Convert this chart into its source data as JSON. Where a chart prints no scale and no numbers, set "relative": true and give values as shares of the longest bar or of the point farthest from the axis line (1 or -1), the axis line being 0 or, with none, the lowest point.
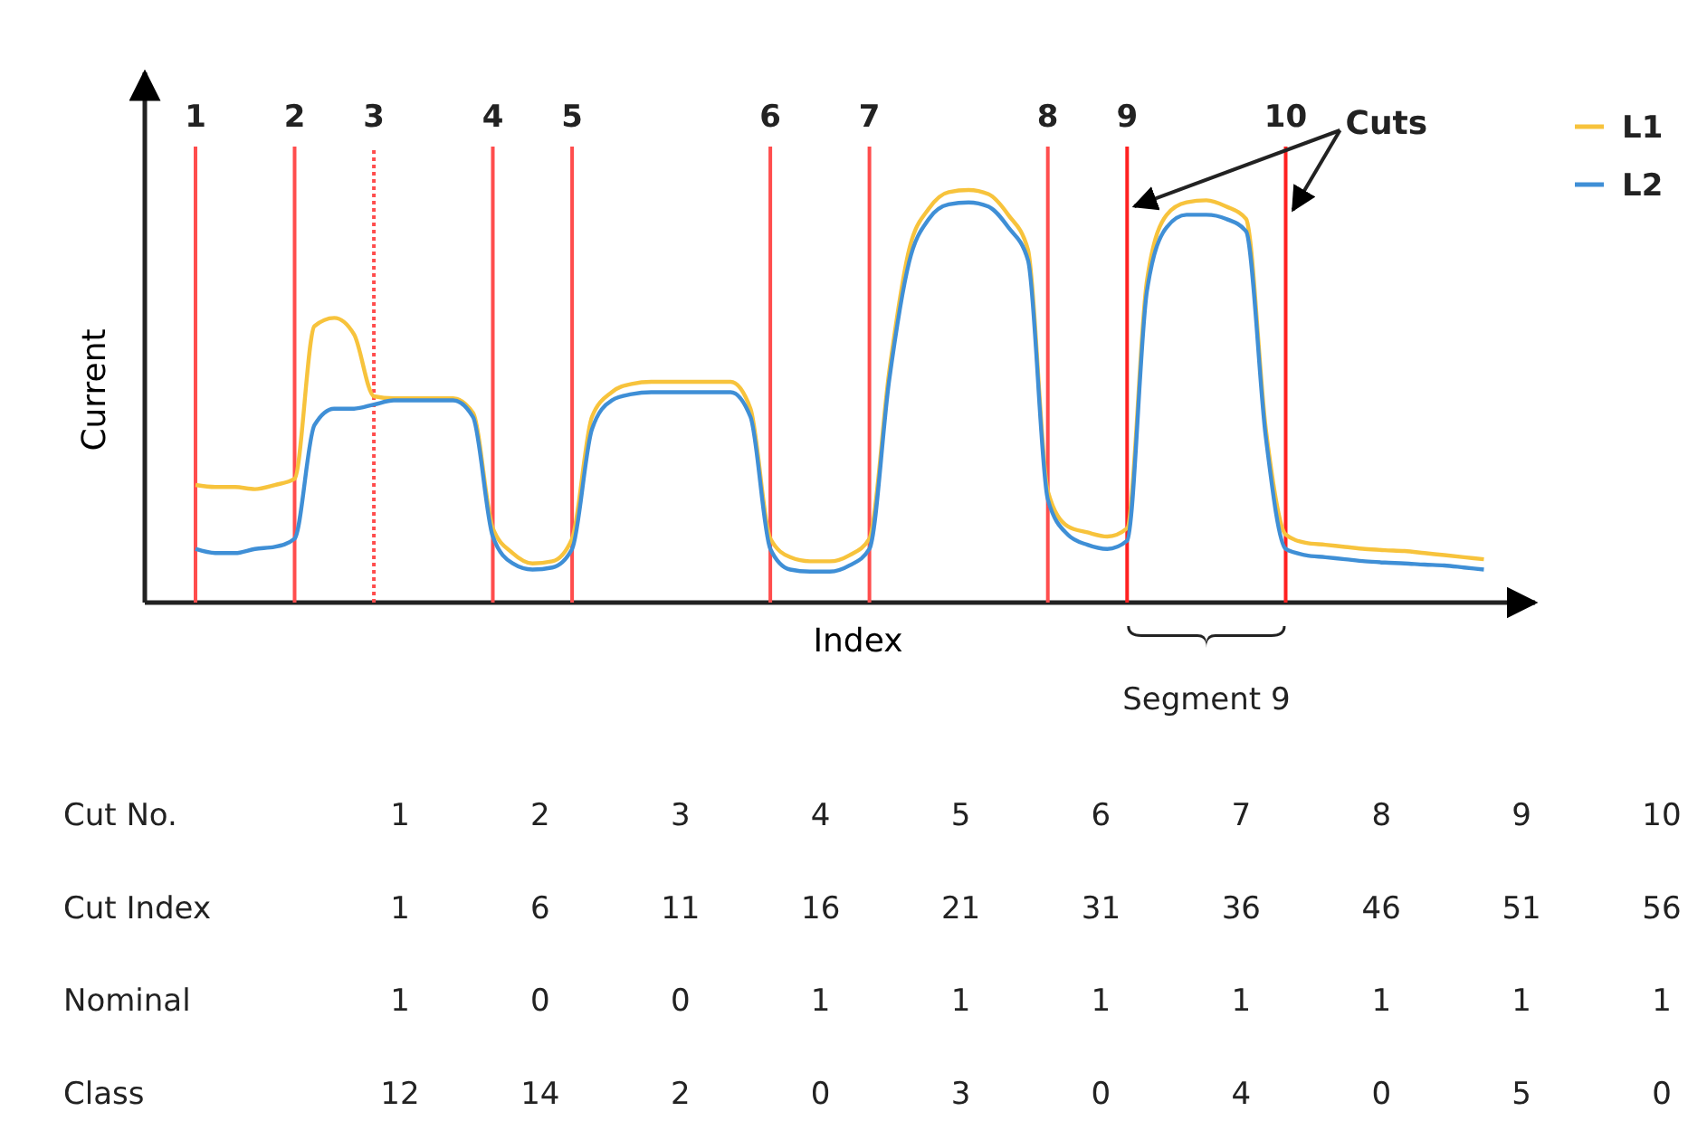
{
  "chart_data": [
    {
      "type": "line",
      "relative": true,
      "xlabel": "Index",
      "ylabel": "Current",
      "legend": "top right",
      "marker": "none",
      "line_style": "solid",
      "categories": [
        "1",
        null,
        null,
        null,
        null,
        "2",
        null,
        null,
        null,
        "3",
        null,
        null,
        null,
        null,
        null,
        "4",
        null,
        null,
        null,
        "5",
        null,
        null,
        null,
        null,
        null,
        null,
        null,
        null,
        null,
        "6",
        null,
        null,
        null,
        null,
        "7",
        null,
        null,
        null,
        null,
        null,
        null,
        null,
        null,
        "8",
        null,
        null,
        null,
        "9",
        null,
        null,
        null,
        null,
        null,
        null,
        null,
        "10",
        null,
        null,
        null,
        null,
        null,
        null,
        null,
        null,
        null,
        null
      ],
      "series": [
        {
          "name": "L1",
          "color": "#f7c33c",
          "values": [
            0.285,
            0.28,
            0.28,
            0.275,
            0.285,
            0.3,
            0.67,
            0.69,
            0.65,
            0.5,
            0.495,
            0.495,
            0.495,
            0.495,
            0.46,
            0.18,
            0.12,
            0.095,
            0.1,
            0.155,
            0.45,
            0.51,
            0.53,
            0.535,
            0.535,
            0.535,
            0.535,
            0.535,
            0.47,
            0.155,
            0.11,
            0.1,
            0.1,
            0.115,
            0.155,
            0.56,
            0.855,
            0.955,
            0.995,
            1,
            0.99,
            0.94,
            0.855,
            0.27,
            0.185,
            0.17,
            0.16,
            0.18,
            0.78,
            0.94,
            0.97,
            0.975,
            0.96,
            0.93,
            0.42,
            0.165,
            0.145,
            0.14,
            0.135,
            0.13,
            0.127,
            0.125,
            0.12,
            0.115,
            0.11,
            0.105
          ]
        },
        {
          "name": "L2",
          "color": "#3f8fd6",
          "values": [
            0.13,
            0.12,
            0.12,
            0.13,
            0.135,
            0.155,
            0.43,
            0.47,
            0.47,
            0.48,
            0.49,
            0.49,
            0.49,
            0.49,
            0.45,
            0.16,
            0.095,
            0.08,
            0.085,
            0.13,
            0.42,
            0.49,
            0.505,
            0.51,
            0.51,
            0.51,
            0.51,
            0.51,
            0.45,
            0.13,
            0.08,
            0.075,
            0.075,
            0.09,
            0.13,
            0.54,
            0.825,
            0.93,
            0.965,
            0.97,
            0.96,
            0.91,
            0.83,
            0.25,
            0.165,
            0.14,
            0.13,
            0.15,
            0.755,
            0.91,
            0.94,
            0.94,
            0.93,
            0.9,
            0.4,
            0.13,
            0.115,
            0.11,
            0.105,
            0.1,
            0.097,
            0.095,
            0.092,
            0.09,
            0.085,
            0.08
          ]
        }
      ],
      "ref_lines": [
        {
          "axis": "x",
          "value": "1",
          "color": "#ff4d4d",
          "line_style": "solid"
        },
        {
          "axis": "x",
          "value": "2",
          "color": "#ff4d4d",
          "line_style": "solid"
        },
        {
          "axis": "x",
          "value": "3",
          "color": "#ff4d4d",
          "line_style": "dotted"
        },
        {
          "axis": "x",
          "value": "4",
          "color": "#ff4d4d",
          "line_style": "solid"
        },
        {
          "axis": "x",
          "value": "5",
          "color": "#ff4d4d",
          "line_style": "solid"
        },
        {
          "axis": "x",
          "value": "6",
          "color": "#ff4d4d",
          "line_style": "solid"
        },
        {
          "axis": "x",
          "value": "7",
          "color": "#ff4d4d",
          "line_style": "solid"
        },
        {
          "axis": "x",
          "value": "8",
          "color": "#ff4d4d",
          "line_style": "solid"
        },
        {
          "axis": "x",
          "value": "9",
          "color": "#ff2020",
          "line_style": "solid"
        },
        {
          "axis": "x",
          "value": "10",
          "color": "#ff2020",
          "line_style": "solid"
        }
      ],
      "annotations": [
        "Cuts",
        "Segment 9"
      ]
    },
    {
      "type": "heatmap",
      "data_labels": true,
      "categories": [
        null,
        null,
        null,
        null,
        null,
        null,
        null,
        null,
        null,
        null
      ],
      "y_categories": [
        "Cut No.",
        "Cut Index",
        "Nominal",
        "Class"
      ],
      "cells": [
        [
          1,
          2,
          3,
          4,
          5,
          6,
          7,
          8,
          9,
          10
        ],
        [
          1,
          6,
          11,
          16,
          21,
          31,
          36,
          46,
          51,
          56
        ],
        [
          1,
          0,
          0,
          1,
          1,
          1,
          1,
          1,
          1,
          1
        ],
        [
          12,
          14,
          2,
          0,
          3,
          0,
          4,
          0,
          5,
          0
        ]
      ]
    }
  ]
}
